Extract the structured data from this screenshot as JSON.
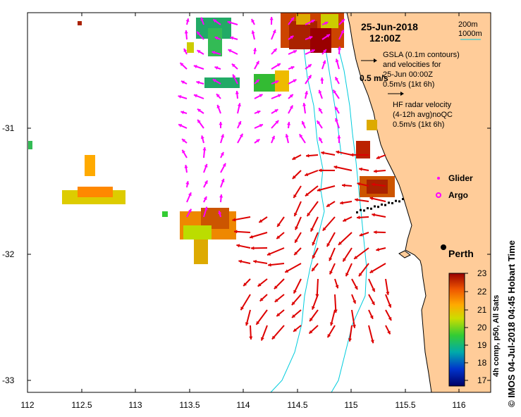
{
  "title": {
    "date": "25-Jun-2018",
    "time": "12:00Z"
  },
  "depth_legend": {
    "shallow": "200m",
    "deep": "1000m"
  },
  "gsla_legend": {
    "line1": "GSLA (0.1m contours)",
    "line2": "and velocities for",
    "line3": "25-Jun 00:00Z",
    "scale": "0.5m/s (1kt 6h)"
  },
  "speed_label": "0.5 m/s",
  "hf_legend": {
    "line1": "HF radar velocity",
    "line2": "(4-12h avg)noQC",
    "scale": "0.5m/s (1kt 6h)"
  },
  "symbols": {
    "glider": "Glider",
    "argo": "Argo"
  },
  "place": {
    "perth": "Perth"
  },
  "colorbar": {
    "title": "4h comp, p50, All Sats",
    "labels": [
      "23",
      "22",
      "21",
      "20",
      "19",
      "18",
      "17"
    ],
    "min": 17,
    "max": 23
  },
  "credit": "© IMOS 04-Jul-2018 04:45 Hobart Time",
  "axes": {
    "x_ticks": [
      "112",
      "112.5",
      "113",
      "113.5",
      "114",
      "114.5",
      "115",
      "115.5",
      "116"
    ],
    "y_ticks": [
      "-31",
      "-32",
      "-33"
    ],
    "lon_range": [
      112,
      116.3
    ],
    "lat_range": [
      -33.1,
      -30.1
    ]
  },
  "colors": {
    "land": "#FFCC99",
    "coast": "#000000",
    "contour": "#00CCDD",
    "gsla_arrow": "#FF00FF",
    "hf_arrow": "#DD0000",
    "glider": "#000000"
  }
}
